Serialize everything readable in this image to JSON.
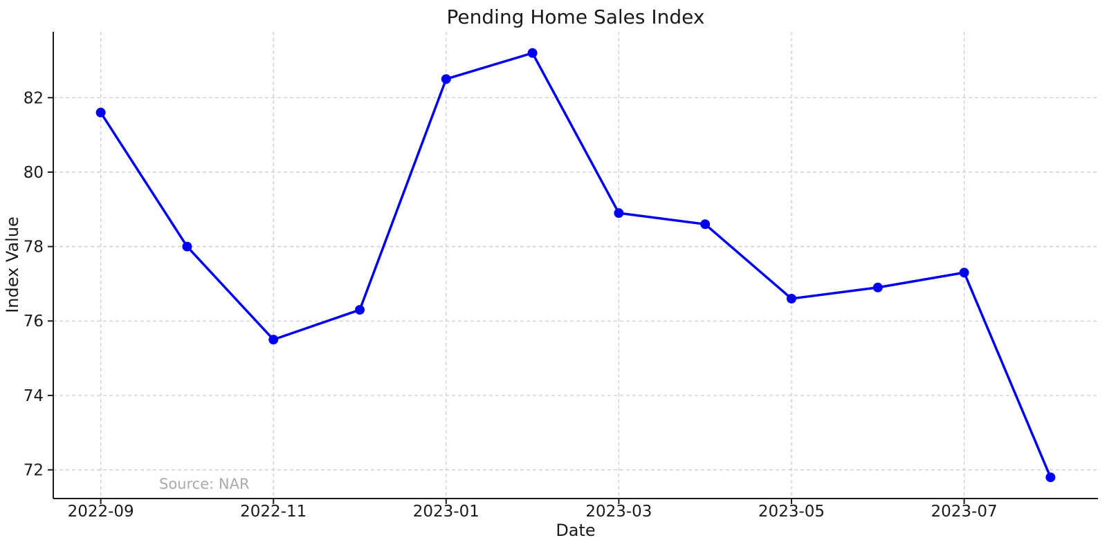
{
  "chart_data": {
    "type": "line",
    "title": "Pending Home Sales Index",
    "xlabel": "Date",
    "ylabel": "Index Value",
    "annotation": "Source: NAR",
    "x": [
      "2022-09",
      "2022-10",
      "2022-11",
      "2022-12",
      "2023-01",
      "2023-02",
      "2023-03",
      "2023-04",
      "2023-05",
      "2023-06",
      "2023-07",
      "2023-08"
    ],
    "values": [
      81.6,
      78.0,
      75.5,
      76.3,
      82.5,
      83.2,
      78.9,
      78.6,
      76.6,
      76.9,
      77.3,
      71.8
    ],
    "series_name": "Pending Home Sales Index",
    "xtick_indices": [
      0,
      2,
      4,
      6,
      8,
      10
    ],
    "xtick_labels": [
      "2022-09",
      "2022-11",
      "2023-01",
      "2023-03",
      "2023-05",
      "2023-07"
    ],
    "ytick_values": [
      72,
      74,
      76,
      78,
      80,
      82
    ],
    "ytick_labels": [
      "72",
      "74",
      "76",
      "78",
      "80",
      "82"
    ],
    "ylim": [
      71.23,
      83.77
    ],
    "xlim_index": [
      -0.55,
      11.55
    ],
    "grid": true,
    "grid_style": "dashed",
    "legend_position": "none",
    "line_color": "#0000f0",
    "marker": "circle",
    "grid_color": "#cccccc",
    "axis_color": "#1a1a1a",
    "text_color": "#1a1a1a",
    "annotation_color": "#aaaaaa",
    "background_color": "#ffffff"
  }
}
